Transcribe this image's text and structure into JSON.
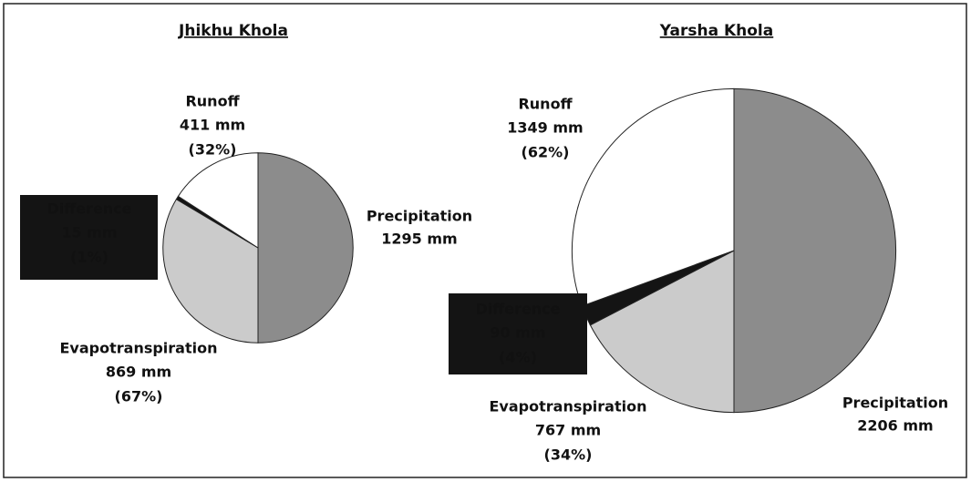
{
  "chart_data": [
    {
      "type": "pie",
      "title": "Jhikhu Khola",
      "input": {
        "name": "Precipitation",
        "value": 1295,
        "value_label": "1295 mm",
        "color": "#8c8c8c"
      },
      "outputs": [
        {
          "name": "Evapotranspiration",
          "value": 869,
          "value_label": "869 mm",
          "percent": 67,
          "percent_label": "(67%)",
          "color": "#cbcbcb"
        },
        {
          "name": "Difference",
          "value": 15,
          "value_label": "15 mm",
          "percent": 1,
          "percent_label": "(1%)",
          "color": "#141414"
        },
        {
          "name": "Runoff",
          "value": 411,
          "value_label": "411 mm",
          "percent": 32,
          "percent_label": "(32%)",
          "color": "#ffffff"
        }
      ]
    },
    {
      "type": "pie",
      "title": "Yarsha  Khola",
      "input": {
        "name": "Precipitation",
        "value": 2206,
        "value_label": "2206 mm",
        "color": "#8c8c8c"
      },
      "outputs": [
        {
          "name": "Evapotranspiration",
          "value": 767,
          "value_label": "767 mm",
          "percent": 34,
          "percent_label": "(34%)",
          "color": "#cbcbcb"
        },
        {
          "name": "Difference",
          "value": 90,
          "value_label": "90 mm",
          "percent": 4,
          "percent_label": "(4%)",
          "color": "#141414"
        },
        {
          "name": "Runoff",
          "value": 1349,
          "value_label": "1349 mm",
          "percent": 62,
          "percent_label": "(62%)",
          "color": "#ffffff"
        }
      ]
    }
  ]
}
